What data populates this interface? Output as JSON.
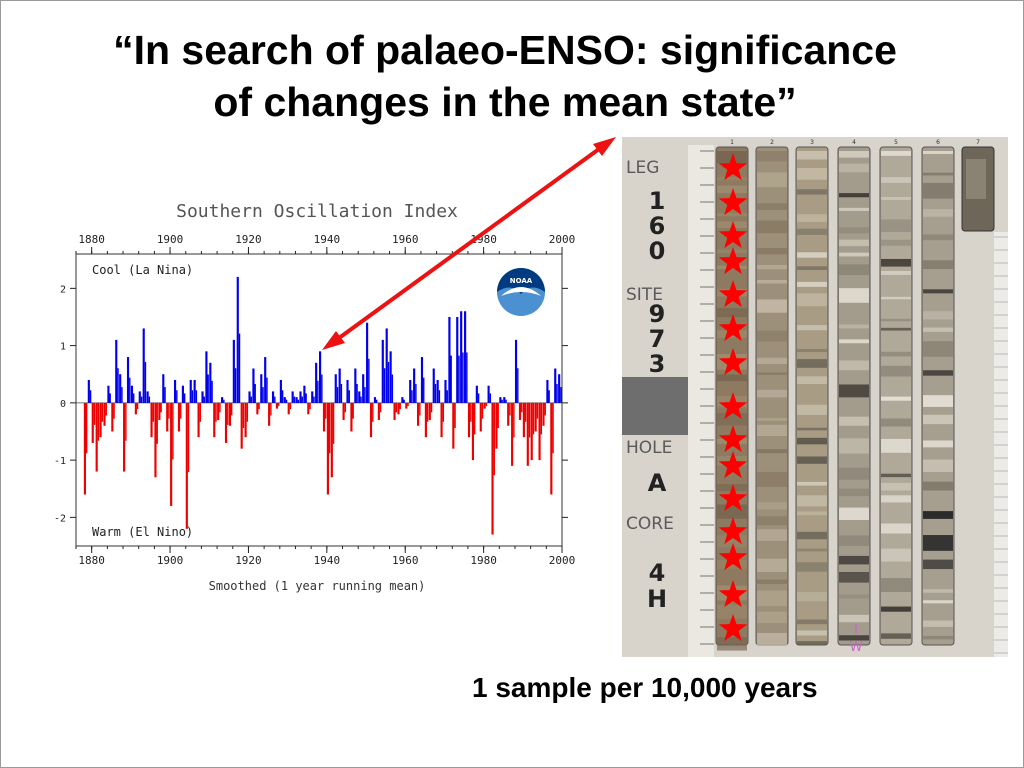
{
  "slide": {
    "title_line1": "“In search of palaeo-ENSO: significance",
    "title_line2": "of changes in the mean state”",
    "caption": "1 sample per 10,000 years"
  },
  "chart_data": {
    "type": "bar",
    "title": "Southern Oscillation Index",
    "xlabel": "Smoothed (1 year running mean)",
    "ylabel": "",
    "xlim": [
      1876,
      2000
    ],
    "ylim": [
      -2.5,
      2.6
    ],
    "x_ticks": [
      1880,
      1900,
      1920,
      1940,
      1960,
      1980,
      2000
    ],
    "y_ticks": [
      -2,
      -1,
      0,
      1,
      2
    ],
    "grid": false,
    "annotations": {
      "top": "Cool (La Nina)",
      "bottom": "Warm (El Nino)"
    },
    "colors": {
      "positive": "#0000ee",
      "negative": "#ee0000"
    },
    "x": [
      1878,
      1879,
      1880,
      1881,
      1882,
      1883,
      1884,
      1885,
      1886,
      1887,
      1888,
      1889,
      1890,
      1891,
      1892,
      1893,
      1894,
      1895,
      1896,
      1897,
      1898,
      1899,
      1900,
      1901,
      1902,
      1903,
      1904,
      1905,
      1906,
      1907,
      1908,
      1909,
      1910,
      1911,
      1912,
      1913,
      1914,
      1915,
      1916,
      1917,
      1918,
      1919,
      1920,
      1921,
      1922,
      1923,
      1924,
      1925,
      1926,
      1927,
      1928,
      1929,
      1930,
      1931,
      1932,
      1933,
      1934,
      1935,
      1936,
      1937,
      1938,
      1939,
      1940,
      1941,
      1942,
      1943,
      1944,
      1945,
      1946,
      1947,
      1948,
      1949,
      1950,
      1951,
      1952,
      1953,
      1954,
      1955,
      1956,
      1957,
      1958,
      1959,
      1960,
      1961,
      1962,
      1963,
      1964,
      1965,
      1966,
      1967,
      1968,
      1969,
      1970,
      1971,
      1972,
      1973,
      1974,
      1975,
      1976,
      1977,
      1978,
      1979,
      1980,
      1981,
      1982,
      1983,
      1984,
      1985,
      1986,
      1987,
      1988,
      1989,
      1990,
      1991,
      1992,
      1993,
      1994,
      1995,
      1996,
      1997,
      1998,
      1999
    ],
    "values": [
      -1.6,
      0.4,
      -0.7,
      -1.2,
      -0.6,
      -0.4,
      0.3,
      -0.5,
      1.1,
      0.5,
      -1.2,
      0.8,
      0.3,
      -0.2,
      0.2,
      1.3,
      0.2,
      -0.6,
      -1.3,
      -0.3,
      0.5,
      -0.5,
      -1.8,
      0.4,
      -0.5,
      0.3,
      -2.2,
      0.4,
      0.4,
      -0.6,
      0.2,
      0.9,
      0.7,
      -0.6,
      -0.3,
      0.1,
      -0.7,
      -0.4,
      1.1,
      2.2,
      -0.8,
      -0.6,
      0.2,
      0.6,
      -0.2,
      0.5,
      0.8,
      -0.4,
      0.2,
      -0.1,
      0.4,
      0.1,
      -0.2,
      0.2,
      0.1,
      0.2,
      0.3,
      -0.2,
      0.2,
      0.7,
      0.9,
      -0.5,
      -1.6,
      -1.3,
      0.5,
      0.6,
      -0.3,
      0.4,
      -0.5,
      0.6,
      0.2,
      0.5,
      1.4,
      -0.6,
      0.1,
      -0.3,
      1.1,
      1.3,
      0.9,
      -0.3,
      -0.2,
      0.1,
      -0.1,
      0.4,
      0.6,
      -0.4,
      0.8,
      -0.6,
      -0.3,
      0.6,
      0.4,
      -0.6,
      0.4,
      1.5,
      -0.8,
      1.5,
      1.6,
      1.6,
      -0.6,
      -1.0,
      0.3,
      -0.5,
      -0.1,
      0.3,
      -2.3,
      -0.8,
      0.1,
      0.1,
      -0.4,
      -1.1,
      1.1,
      -0.3,
      -0.6,
      -1.1,
      -1.0,
      -0.5,
      -1.0,
      -0.4,
      0.4,
      -1.6,
      0.6,
      0.5
    ]
  },
  "logo": {
    "name": "noaa-logo",
    "text": "NOAA"
  },
  "core": {
    "labels": {
      "leg_heading": "LEG",
      "leg_number": [
        "1",
        "6",
        "0"
      ],
      "site_heading": "SITE",
      "site_number": [
        "9",
        "7",
        "3"
      ],
      "hole_heading": "HOLE",
      "hole_value": "A",
      "core_heading": "CORE",
      "core_value": [
        "4",
        "H"
      ],
      "section_numbers": [
        "1",
        "2",
        "3",
        "4",
        "5",
        "6",
        "7"
      ],
      "iw_mark": [
        "I",
        "W"
      ]
    },
    "sample_star_count": 15,
    "star_color": "#ff0000",
    "star_icon": "star-icon"
  },
  "arrow": {
    "color": "#ee1111",
    "icon": "double-headed-arrow-icon"
  }
}
